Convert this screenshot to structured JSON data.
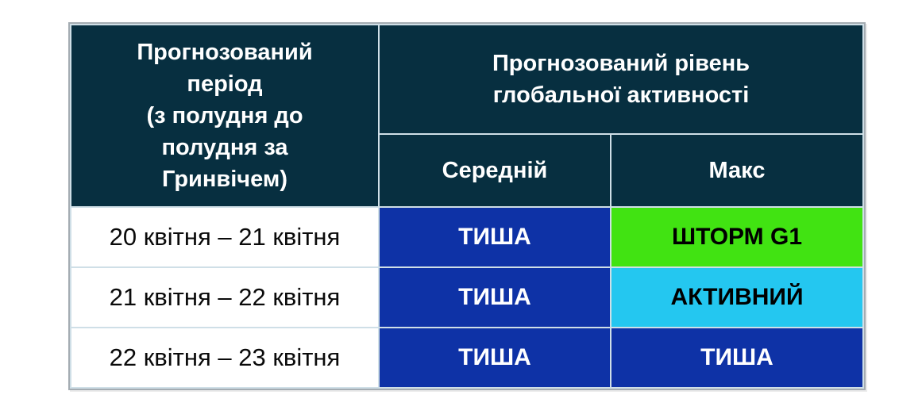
{
  "table": {
    "header": {
      "period_label": "Прогнозований\nперіод\n(з полудня до\nполудня за\nГринвічем)",
      "activity_label": "Прогнозований рівень\nглобальної активності",
      "avg_label": "Середній",
      "max_label": "Макс"
    },
    "rows": [
      {
        "period": "20 квітня – 21 квітня",
        "avg": {
          "label": "ТИША",
          "bg": "#0e32a6",
          "fg": "#ffffff"
        },
        "max": {
          "label": "ШТОРМ G1",
          "bg": "#41e312",
          "fg": "#000000"
        }
      },
      {
        "period": "21 квітня – 22 квітня",
        "avg": {
          "label": "ТИША",
          "bg": "#0e32a6",
          "fg": "#ffffff"
        },
        "max": {
          "label": "АКТИВНИЙ",
          "bg": "#24c7f0",
          "fg": "#000000"
        }
      },
      {
        "period": "22 квітня – 23 квітня",
        "avg": {
          "label": "ТИША",
          "bg": "#0e32a6",
          "fg": "#ffffff"
        },
        "max": {
          "label": "ТИША",
          "bg": "#0e32a6",
          "fg": "#ffffff"
        }
      }
    ],
    "colors": {
      "header_bg": "#072f40",
      "header_text": "#ffffff",
      "quiet_bg": "#0e32a6",
      "storm_bg": "#41e312",
      "active_bg": "#24c7f0",
      "inner_border": "#cfdfe7",
      "outer_border": "#a4acb2",
      "page_bg": "#ffffff"
    }
  },
  "chart_data": {
    "type": "table",
    "title": "Прогнозований рівень глобальної активності",
    "columns": [
      "Прогнозований період (з полудня до полудня за Гринвічем)",
      "Середній",
      "Макс"
    ],
    "rows": [
      [
        "20 квітня – 21 квітня",
        "ТИША",
        "ШТОРМ G1"
      ],
      [
        "21 квітня – 22 квітня",
        "ТИША",
        "АКТИВНИЙ"
      ],
      [
        "22 квітня – 23 квітня",
        "ТИША",
        "ТИША"
      ]
    ],
    "legend": {
      "ТИША": "#0e32a6",
      "АКТИВНИЙ": "#24c7f0",
      "ШТОРМ G1": "#41e312"
    }
  }
}
